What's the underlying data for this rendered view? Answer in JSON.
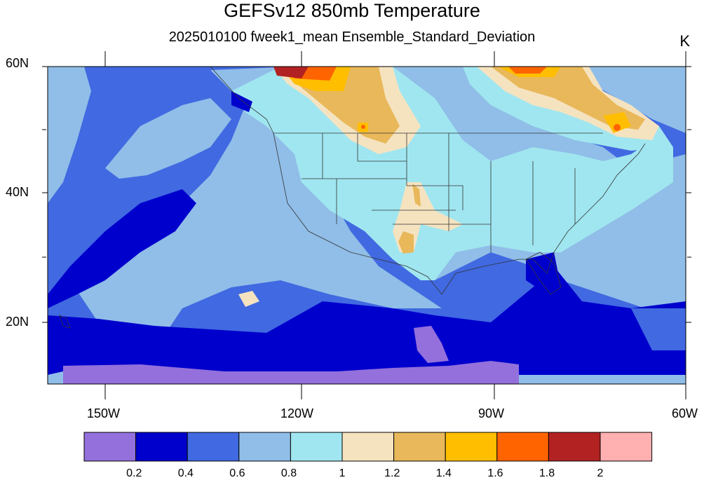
{
  "title": "GEFSv12 850mb Temperature",
  "subtitle": "2025010100 fweek1_mean Ensemble_Standard_Deviation",
  "units": "K",
  "lat_labels": [
    "60N",
    "40N",
    "20N"
  ],
  "lon_labels": [
    "150W",
    "120W",
    "90W",
    "60W"
  ],
  "colorbar": {
    "colors": [
      "#9370db",
      "#0000cd",
      "#4169e1",
      "#90bee8",
      "#a0e6f0",
      "#f5e3c0",
      "#e8b85a",
      "#ffbe00",
      "#ff6400",
      "#b22222",
      "#ffb0b0"
    ],
    "labels": [
      "0.2",
      "0.4",
      "0.6",
      "0.8",
      "1",
      "1.2",
      "1.4",
      "1.6",
      "1.8",
      "2"
    ]
  }
}
